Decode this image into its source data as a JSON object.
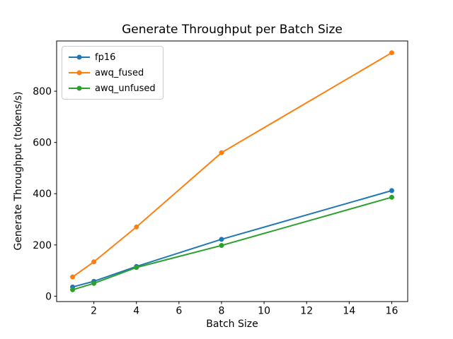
{
  "chart_data": {
    "type": "line",
    "title": "Generate Throughput per Batch Size",
    "xlabel": "Batch Size",
    "ylabel": "Generate Throughput (tokens/s)",
    "x": [
      1,
      2,
      4,
      8,
      16
    ],
    "series": [
      {
        "name": "fp16",
        "color": "#1f77b4",
        "values": [
          36,
          58,
          116,
          222,
          412
        ]
      },
      {
        "name": "awq_fused",
        "color": "#ff7f0e",
        "values": [
          75,
          134,
          270,
          560,
          950
        ]
      },
      {
        "name": "awq_unfused",
        "color": "#2ca02c",
        "values": [
          25,
          50,
          112,
          198,
          386
        ]
      }
    ],
    "xlim": [
      0.25,
      16.75
    ],
    "ylim": [
      -21,
      996
    ],
    "xticks": [
      2,
      4,
      6,
      8,
      10,
      12,
      14,
      16
    ],
    "yticks": [
      0,
      200,
      400,
      600,
      800
    ],
    "grid": false,
    "legend_position": "upper left",
    "marker": "o",
    "marker_radius": 3.5,
    "line_width": 2,
    "background": "#ffffff",
    "spine_color": "#000000"
  }
}
